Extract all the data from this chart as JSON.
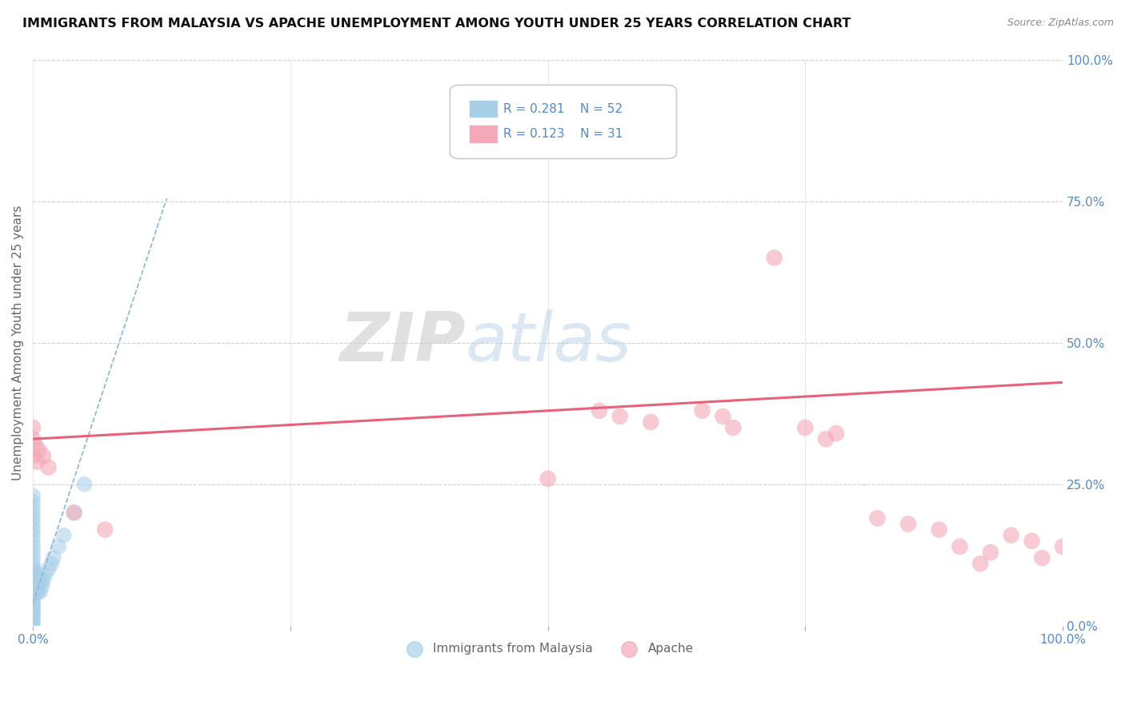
{
  "title": "IMMIGRANTS FROM MALAYSIA VS APACHE UNEMPLOYMENT AMONG YOUTH UNDER 25 YEARS CORRELATION CHART",
  "source": "Source: ZipAtlas.com",
  "ylabel": "Unemployment Among Youth under 25 years",
  "xlim": [
    0,
    1
  ],
  "ylim": [
    0,
    1
  ],
  "ytick_labels": [
    "0.0%",
    "25.0%",
    "50.0%",
    "75.0%",
    "100.0%"
  ],
  "ytick_values": [
    0,
    0.25,
    0.5,
    0.75,
    1.0
  ],
  "watermark_zip": "ZIP",
  "watermark_atlas": "atlas",
  "legend_blue_R": "R = 0.281",
  "legend_blue_N": "N = 52",
  "legend_pink_R": "R = 0.123",
  "legend_pink_N": "N = 31",
  "blue_color": "#a8cfe8",
  "pink_color": "#f4a8b8",
  "blue_trend_color": "#8ab4d8",
  "pink_trend_color": "#e8607a",
  "grid_color": "#d0d0d0",
  "title_color": "#111111",
  "axis_label_color": "#666666",
  "tick_label_color": "#5588cc",
  "blue_scatter_x": [
    0.0,
    0.0,
    0.0,
    0.0,
    0.0,
    0.0,
    0.0,
    0.0,
    0.0,
    0.0,
    0.0,
    0.0,
    0.0,
    0.0,
    0.0,
    0.0,
    0.0,
    0.0,
    0.0,
    0.0,
    0.0,
    0.0,
    0.0,
    0.0,
    0.0,
    0.0,
    0.0,
    0.0,
    0.0,
    0.0,
    0.001,
    0.001,
    0.002,
    0.002,
    0.003,
    0.003,
    0.004,
    0.005,
    0.005,
    0.006,
    0.007,
    0.008,
    0.009,
    0.01,
    0.012,
    0.015,
    0.018,
    0.02,
    0.025,
    0.03,
    0.04,
    0.05
  ],
  "blue_scatter_y": [
    0.0,
    0.01,
    0.01,
    0.02,
    0.03,
    0.04,
    0.05,
    0.06,
    0.07,
    0.08,
    0.09,
    0.1,
    0.11,
    0.12,
    0.13,
    0.14,
    0.15,
    0.16,
    0.17,
    0.18,
    0.19,
    0.2,
    0.21,
    0.22,
    0.23,
    0.02,
    0.03,
    0.04,
    0.05,
    0.06,
    0.08,
    0.1,
    0.07,
    0.09,
    0.06,
    0.08,
    0.07,
    0.06,
    0.08,
    0.07,
    0.06,
    0.08,
    0.07,
    0.08,
    0.09,
    0.1,
    0.11,
    0.12,
    0.14,
    0.16,
    0.2,
    0.25
  ],
  "pink_scatter_x": [
    0.0,
    0.0,
    0.0,
    0.002,
    0.004,
    0.006,
    0.01,
    0.015,
    0.04,
    0.07,
    0.55,
    0.57,
    0.6,
    0.65,
    0.67,
    0.68,
    0.72,
    0.75,
    0.77,
    0.78,
    0.82,
    0.85,
    0.88,
    0.9,
    0.93,
    0.95,
    0.97,
    0.98,
    1.0,
    0.5,
    0.92
  ],
  "pink_scatter_y": [
    0.35,
    0.33,
    0.3,
    0.32,
    0.29,
    0.31,
    0.3,
    0.28,
    0.2,
    0.17,
    0.38,
    0.37,
    0.36,
    0.38,
    0.37,
    0.35,
    0.65,
    0.35,
    0.33,
    0.34,
    0.19,
    0.18,
    0.17,
    0.14,
    0.13,
    0.16,
    0.15,
    0.12,
    0.14,
    0.26,
    0.11
  ],
  "blue_trend_x": [
    0.0,
    0.13
  ],
  "blue_trend_slope": 5.5,
  "blue_trend_intercept": 0.04,
  "pink_trend_x": [
    0.0,
    1.0
  ],
  "pink_trend_slope": 0.1,
  "pink_trend_intercept": 0.33
}
